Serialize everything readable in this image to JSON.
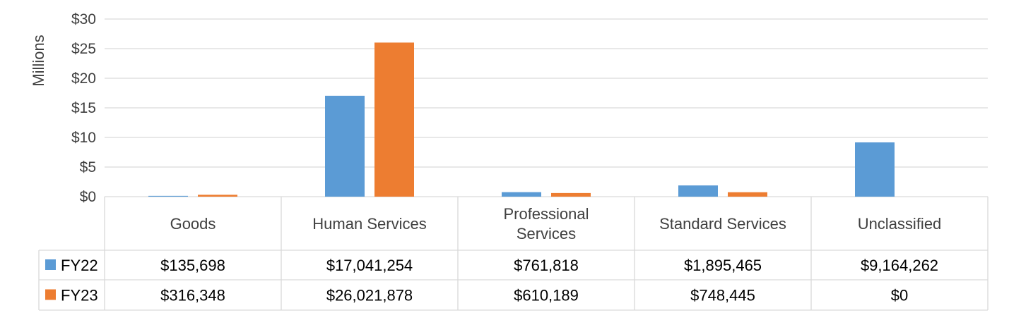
{
  "chart_data": {
    "type": "bar",
    "title": "",
    "xlabel": "",
    "ylabel": "Millions",
    "ylim": [
      0,
      30
    ],
    "yticks": [
      0,
      5,
      10,
      15,
      20,
      25,
      30
    ],
    "ytick_labels": [
      "$0",
      "$5",
      "$10",
      "$15",
      "$20",
      "$25",
      "$30"
    ],
    "grid": true,
    "legend": "data-table",
    "categories": [
      [
        "Goods"
      ],
      [
        "Human Services"
      ],
      [
        "Professional",
        "Services"
      ],
      [
        "Standard Services"
      ],
      [
        "Unclassified"
      ]
    ],
    "series": [
      {
        "name": "FY22",
        "color": "#5B9BD5",
        "values": [
          0.135698,
          17.041254,
          0.761818,
          1.895465,
          9.164262
        ],
        "labels": [
          "$135,698",
          "$17,041,254",
          "$761,818",
          "$1,895,465",
          "$9,164,262"
        ]
      },
      {
        "name": "FY23",
        "color": "#ED7D31",
        "values": [
          0.316348,
          26.021878,
          0.610189,
          0.748445,
          0
        ],
        "labels": [
          "$316,348",
          "$26,021,878",
          "$610,189",
          "$748,445",
          "$0"
        ]
      }
    ]
  }
}
